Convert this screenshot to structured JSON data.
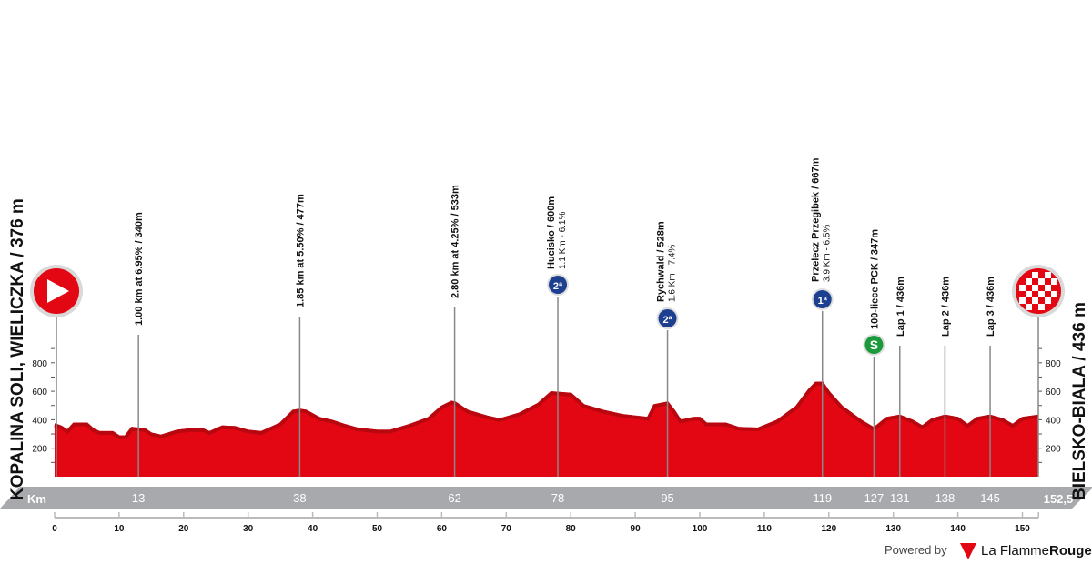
{
  "chart_data": {
    "type": "area",
    "title": "",
    "start": {
      "label": "KOPALINA SOLI, WIELICZKA / 376 m",
      "icon": "start-flag-icon"
    },
    "finish": {
      "label": "BIELSKO-BIALA / 436 m",
      "icon": "checkered-finish-icon"
    },
    "xlabel": "Km",
    "xlim": [
      0,
      152.5
    ],
    "ylim": [
      0,
      900
    ],
    "x_ticks": [
      0,
      10,
      20,
      30,
      40,
      50,
      60,
      70,
      80,
      90,
      100,
      110,
      120,
      130,
      140,
      150
    ],
    "y_ticks": [
      200,
      400,
      600,
      800
    ],
    "fill_color": "#e30613",
    "profile": {
      "km": [
        0,
        1,
        2,
        3,
        5,
        6,
        7,
        9,
        10,
        11,
        12,
        14,
        15,
        16.5,
        19,
        21,
        23,
        24,
        26,
        28,
        30,
        32,
        33,
        35,
        37,
        38,
        39,
        41,
        43,
        45,
        47,
        50,
        52,
        55,
        58,
        60,
        61.5,
        62,
        64,
        67,
        69,
        72,
        75,
        77,
        80,
        82,
        85,
        88,
        90,
        92,
        93,
        95,
        96,
        97,
        99,
        100,
        101,
        104,
        106,
        109,
        112,
        115,
        117,
        118,
        119,
        120,
        122,
        125,
        127,
        129,
        131,
        133,
        134.5,
        136,
        138,
        140,
        141.5,
        143,
        145,
        147,
        148.5,
        150,
        152.5
      ],
      "elevation_m": [
        376,
        360,
        330,
        380,
        380,
        340,
        320,
        320,
        290,
        290,
        350,
        340,
        310,
        295,
        330,
        340,
        340,
        320,
        360,
        355,
        330,
        320,
        340,
        380,
        470,
        477,
        470,
        420,
        400,
        370,
        345,
        330,
        330,
        370,
        420,
        500,
        533,
        530,
        470,
        430,
        410,
        450,
        520,
        600,
        590,
        510,
        470,
        440,
        430,
        420,
        510,
        528,
        470,
        400,
        420,
        420,
        380,
        380,
        350,
        345,
        400,
        500,
        620,
        667,
        667,
        600,
        500,
        400,
        347,
        420,
        436,
        400,
        360,
        410,
        436,
        420,
        370,
        420,
        436,
        410,
        370,
        420,
        436
      ]
    },
    "points": [
      {
        "km": 13,
        "km_label": "13",
        "title": "1.00 km at 6.95% / 340m",
        "sub": "",
        "icon": ""
      },
      {
        "km": 38,
        "km_label": "38",
        "title": "1.85 km at 5.50% / 477m",
        "sub": "",
        "icon": ""
      },
      {
        "km": 62,
        "km_label": "62",
        "title": "2.80 km at 4.25% / 533m",
        "sub": "",
        "icon": ""
      },
      {
        "km": 78,
        "km_label": "78",
        "title": "Hucisko / 600m",
        "sub": "1.1 Km - 6.1%",
        "icon": "2ª"
      },
      {
        "km": 95,
        "km_label": "95",
        "title": "Rychwald / 528m",
        "sub": "1.6 Km - 7.4%",
        "icon": "2ª"
      },
      {
        "km": 119,
        "km_label": "119",
        "title": "Przelecz Przegibek / 667m",
        "sub": "3.9 Km - 6.5%",
        "icon": "1ª"
      },
      {
        "km": 127,
        "km_label": "127",
        "title": "100-liece PCK / 347m",
        "sub": "",
        "icon": "S"
      },
      {
        "km": 131,
        "km_label": "131",
        "title": "Lap 1 / 436m",
        "sub": "",
        "icon": ""
      },
      {
        "km": 138,
        "km_label": "138",
        "title": "Lap 2 / 436m",
        "sub": "",
        "icon": ""
      },
      {
        "km": 145,
        "km_label": "145",
        "title": "Lap 3 / 436m",
        "sub": "",
        "icon": ""
      }
    ],
    "total_km_label": "152,5"
  },
  "footer": {
    "powered_by": "Powered by",
    "brand_a": "La Flamme",
    "brand_b": "Rouge",
    "brand_icon": "1"
  },
  "colors": {
    "profile": "#e30613",
    "profile_dark": "#b8070f",
    "km_bar": "#a7a9ac",
    "climb_icon": "#1d3f8f",
    "sprint_icon": "#1a9a3a"
  }
}
